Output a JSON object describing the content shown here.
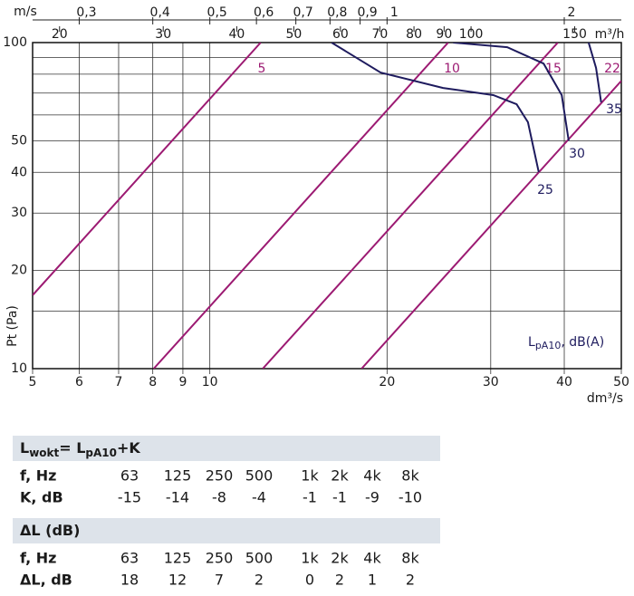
{
  "chart_data": {
    "type": "line",
    "log_x": true,
    "log_y": true,
    "x_label": "dm³/s",
    "y_label": "Pt (Pa)",
    "xlim": [
      5,
      50
    ],
    "xticks": [
      5,
      6,
      7,
      8,
      9,
      10,
      20,
      30,
      40,
      50
    ],
    "ylim": [
      10,
      100
    ],
    "yticks": [
      10,
      20,
      30,
      40,
      50,
      100
    ],
    "y_minor_grid": [
      15,
      60,
      70,
      80,
      90
    ],
    "grid": true,
    "top_axes": [
      {
        "label": "m/s",
        "xlim": [
          0.25,
          2.5
        ],
        "xticks": [
          {
            "value": 0.3,
            "label": "0,3"
          },
          {
            "value": 0.4,
            "label": "0,4"
          },
          {
            "value": 0.5,
            "label": "0,5"
          },
          {
            "value": 0.6,
            "label": "0,6"
          },
          {
            "value": 0.7,
            "label": "0,7"
          },
          {
            "value": 0.8,
            "label": "0,8"
          },
          {
            "value": 0.9,
            "label": "0,9"
          },
          1,
          2
        ]
      },
      {
        "label": "m³/h",
        "xlim": [
          18,
          180
        ],
        "xticks": [
          20,
          30,
          40,
          50,
          60,
          70,
          80,
          90,
          100,
          150
        ]
      }
    ],
    "annotation": [
      "L",
      "pA10",
      ", dB(A)"
    ],
    "series": [
      {
        "name": "5",
        "color": "#9c1a72",
        "x": [
          5,
          12.2
        ],
        "values": [
          16.8,
          100
        ]
      },
      {
        "name": "10",
        "color": "#9c1a72",
        "x": [
          8.03,
          25.4
        ],
        "values": [
          10,
          100
        ]
      },
      {
        "name": "15",
        "color": "#9c1a72",
        "x": [
          12.3,
          39
        ],
        "values": [
          10,
          100
        ]
      },
      {
        "name": "22",
        "color": "#9c1a72",
        "x": [
          18.1,
          50
        ],
        "values": [
          10,
          76.3
        ]
      },
      {
        "name": "25",
        "color": "#1e1b5e",
        "x": [
          16.1,
          19.5,
          24.9,
          30.3,
          33.2,
          34.7,
          36.2
        ],
        "values": [
          100,
          80.9,
          72.6,
          69,
          64.7,
          57,
          40.1
        ]
      },
      {
        "name": "30",
        "color": "#1e1b5e",
        "x": [
          25.9,
          32,
          36.9,
          39.6,
          40.7
        ],
        "values": [
          100,
          96.8,
          86.2,
          69,
          50
        ]
      },
      {
        "name": "35",
        "color": "#1e1b5e",
        "x": [
          44,
          45.3,
          46.2
        ],
        "values": [
          100,
          83.6,
          65.6
        ]
      }
    ]
  },
  "tables": [
    {
      "title": [
        "L",
        "wokt",
        "= L",
        "pA10",
        "+K"
      ],
      "rows": [
        [
          "f, Hz",
          "63",
          "125",
          "250",
          "500",
          "1k",
          "2k",
          "4k",
          "8k"
        ],
        [
          "K, dB",
          "-15",
          "-14",
          "-8",
          "-4",
          "-1",
          "-1",
          "-9",
          "-10"
        ]
      ]
    },
    {
      "title": [
        "ΔL (dB)"
      ],
      "rows": [
        [
          "f, Hz",
          "63",
          "125",
          "250",
          "500",
          "1k",
          "2k",
          "4k",
          "8k"
        ],
        [
          "ΔL, dB",
          "18",
          "12",
          "7",
          "2",
          "0",
          "2",
          "1",
          "2"
        ]
      ]
    }
  ]
}
